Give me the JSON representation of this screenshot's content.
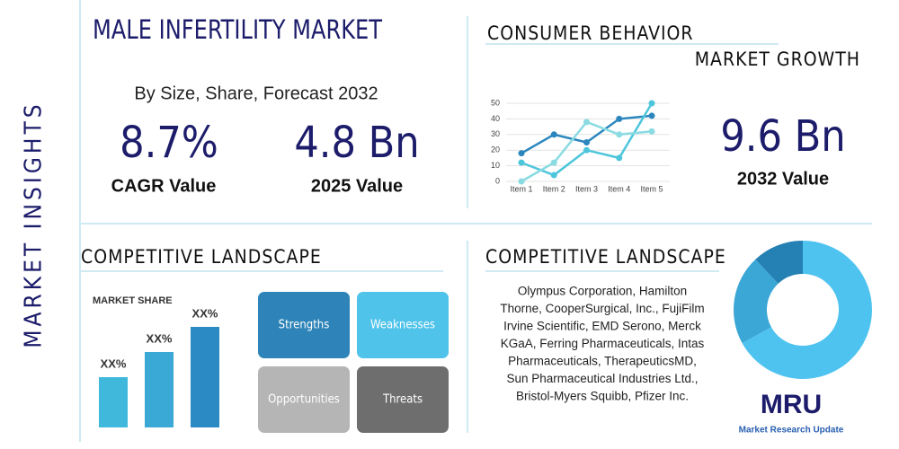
{
  "side_label": "MARKET INSIGHTS",
  "header": {
    "title": "MALE INFERTILITY MARKET",
    "subtitle": "By Size, Share, Forecast 2032"
  },
  "stats": [
    {
      "value": "8.7%",
      "label": "CAGR Value"
    },
    {
      "value": "4.8 Bn",
      "label": "2025 Value"
    }
  ],
  "consumer": {
    "title": "CONSUMER BEHAVIOR",
    "subtitle": "MARKET GROWTH",
    "chart_data": {
      "type": "line",
      "categories": [
        "Item 1",
        "Item 2",
        "Item 3",
        "Item 4",
        "Item 5"
      ],
      "ylim": [
        0,
        50
      ],
      "yticks": [
        0,
        10,
        20,
        30,
        40,
        50
      ],
      "grid": true,
      "series": [
        {
          "color": "#2a86bd",
          "values": [
            18,
            30,
            25,
            40,
            42
          ]
        },
        {
          "color": "#4dc6dc",
          "values": [
            12,
            4,
            20,
            15,
            50
          ]
        },
        {
          "color": "#8adbe2",
          "values": [
            0,
            12,
            38,
            30,
            32
          ]
        }
      ]
    }
  },
  "forecast": {
    "value": "9.6 Bn",
    "label": "2032 Value"
  },
  "landscape_left": {
    "title": "COMPETITIVE LANDSCAPE",
    "chart_data": {
      "type": "bar",
      "title": "MARKET SHARE",
      "values": [
        2,
        3,
        4
      ],
      "value_labels": [
        "XX%",
        "XX%",
        "XX%"
      ],
      "colors": [
        "#3fb8dc",
        "#3aa9d6",
        "#2b8ac4"
      ]
    },
    "swot": [
      "Strengths",
      "Weaknesses",
      "Opportunities",
      "Threats"
    ]
  },
  "landscape_right": {
    "title": "COMPETITIVE LANDSCAPE",
    "companies": [
      "Olympus Corporation, Hamilton",
      "Thorne, CooperSurgical, Inc., FujiFilm",
      "Irvine Scientific, EMD Serono, Merck",
      "KGaA, Ferring Pharmaceuticals, Intas",
      "Pharmaceuticals, TherapeuticsMD,",
      "Sun Pharmaceutical Industries Ltd.,",
      "Bristol-Myers Squibb, Pfizer Inc."
    ],
    "chart_data": {
      "type": "donut",
      "values": [
        67,
        21,
        12
      ],
      "colors": [
        "#4fc3f0",
        "#3aa7d6",
        "#2580b3"
      ]
    }
  },
  "logo": {
    "mark": "MRU",
    "name": "Market Research Update"
  }
}
